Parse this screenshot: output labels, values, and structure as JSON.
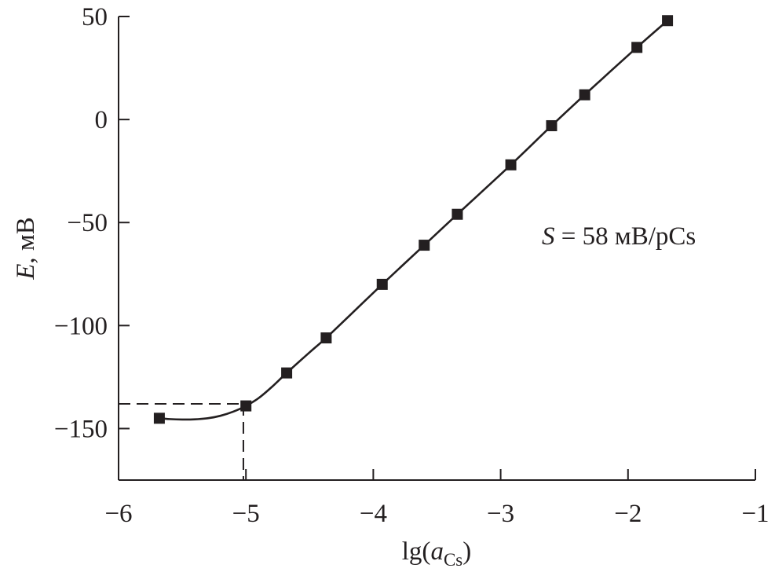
{
  "chart_data": {
    "type": "scatter",
    "title": "",
    "xlabel": {
      "prefix": "lg(",
      "var": "a",
      "sub": "Cs",
      "suffix": ")"
    },
    "ylabel": {
      "var": "E",
      "unit": ", мВ"
    },
    "xlim": [
      -6,
      -1
    ],
    "ylim": [
      -175,
      50
    ],
    "xticks": [
      -6,
      -5,
      -4,
      -3,
      -2,
      -1
    ],
    "xtick_labels": [
      "−6",
      "−5",
      "−4",
      "−3",
      "−2",
      "−1"
    ],
    "yticks": [
      50,
      0,
      -50,
      -100,
      -150
    ],
    "ytick_labels": [
      "50",
      "0",
      "−50",
      "−100",
      "−150"
    ],
    "grid": false,
    "annotation": {
      "var": "S",
      "text": " = 58 мВ/pCs"
    },
    "detection_limit": {
      "x": -5.02,
      "y": -138
    },
    "series": [
      {
        "marker": "square",
        "color": "#231f20",
        "x": [
          -5.68,
          -5.0,
          -4.68,
          -4.37,
          -3.93,
          -3.6,
          -3.34,
          -2.92,
          -2.6,
          -2.34,
          -1.93,
          -1.69
        ],
        "y": [
          -145,
          -139,
          -123,
          -106,
          -80,
          -61,
          -46,
          -22,
          -3,
          12,
          35,
          48
        ]
      }
    ],
    "fit_curve": {
      "x": [
        -5.68,
        -5.6,
        -5.5,
        -5.4,
        -5.3,
        -5.2,
        -5.1,
        -5.0,
        -4.9,
        -4.8,
        -4.68,
        -4.5,
        -4.37,
        -4.2,
        -3.93,
        -3.6,
        -3.34,
        -2.92,
        -2.6,
        -2.34,
        -1.93,
        -1.69
      ],
      "y": [
        -145,
        -145.4,
        -145.6,
        -145.5,
        -145,
        -143.8,
        -141.8,
        -139,
        -135.2,
        -130,
        -123,
        -113,
        -106,
        -96,
        -80,
        -61,
        -46,
        -22,
        -3,
        12,
        35,
        48
      ]
    }
  }
}
